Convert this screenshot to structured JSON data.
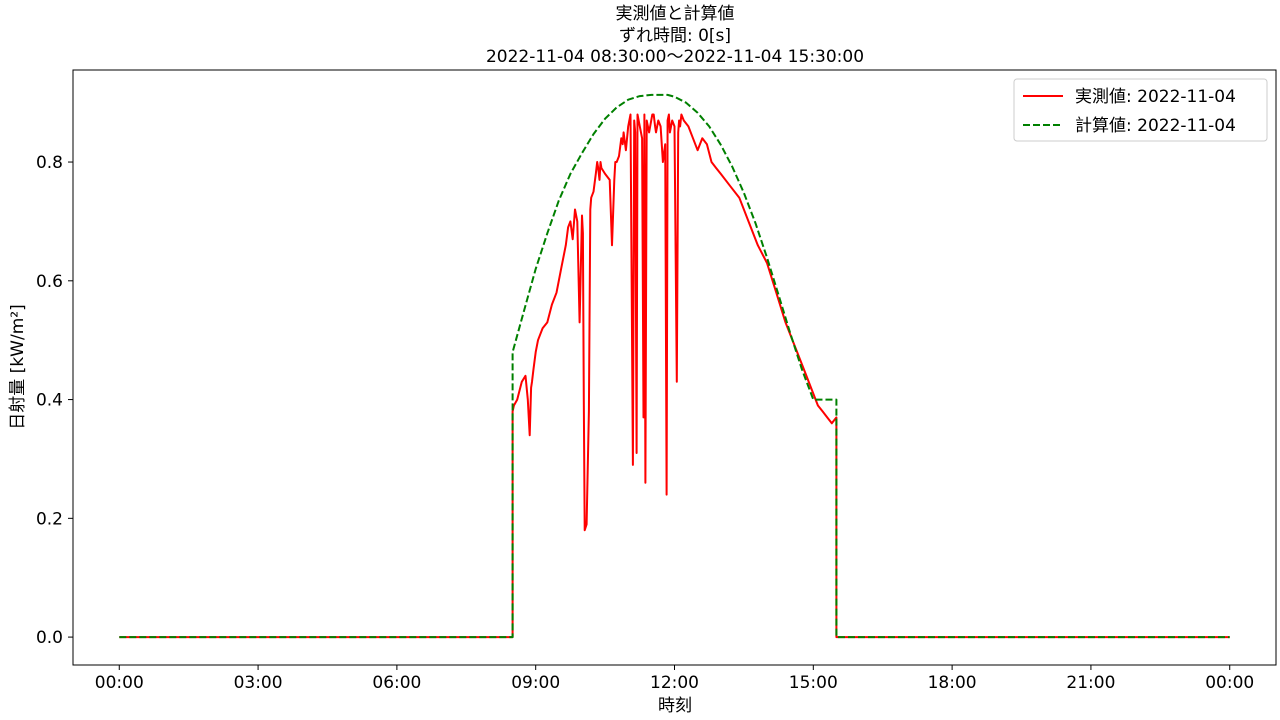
{
  "chart_data": {
    "type": "line",
    "title": [
      "実測値と計算値",
      "ずれ時間: 0[s]",
      "2022-11-04 08:30:00〜2022-11-04 15:30:00"
    ],
    "xlabel": "時刻",
    "ylabel": "日射量 [kW/m²]",
    "x_unit": "hour",
    "xlim": [
      -1,
      25
    ],
    "ylim": [
      -0.047,
      0.955
    ],
    "x_ticks": [
      {
        "value": 0,
        "label": "00:00"
      },
      {
        "value": 3,
        "label": "03:00"
      },
      {
        "value": 6,
        "label": "06:00"
      },
      {
        "value": 9,
        "label": "09:00"
      },
      {
        "value": 12,
        "label": "12:00"
      },
      {
        "value": 15,
        "label": "15:00"
      },
      {
        "value": 18,
        "label": "18:00"
      },
      {
        "value": 21,
        "label": "21:00"
      },
      {
        "value": 24,
        "label": "00:00"
      }
    ],
    "y_ticks": [
      {
        "value": 0.0,
        "label": "0.0"
      },
      {
        "value": 0.2,
        "label": "0.2"
      },
      {
        "value": 0.4,
        "label": "0.4"
      },
      {
        "value": 0.6,
        "label": "0.6"
      },
      {
        "value": 0.8,
        "label": "0.8"
      }
    ],
    "grid": false,
    "legend_position": "top-right",
    "series": [
      {
        "name": "実測値: 2022-11-04",
        "color": "#ff0000",
        "style": "solid",
        "x": [
          0,
          8.5,
          8.5,
          8.53,
          8.6,
          8.7,
          8.78,
          8.83,
          8.87,
          8.9,
          8.92,
          8.95,
          9.0,
          9.05,
          9.1,
          9.15,
          9.25,
          9.35,
          9.45,
          9.55,
          9.65,
          9.7,
          9.75,
          9.8,
          9.85,
          9.9,
          9.95,
          10.0,
          10.02,
          10.04,
          10.06,
          10.1,
          10.15,
          10.18,
          10.2,
          10.25,
          10.3,
          10.33,
          10.35,
          10.38,
          10.4,
          10.42,
          10.5,
          10.6,
          10.65,
          10.7,
          10.72,
          10.75,
          10.8,
          10.85,
          10.88,
          10.9,
          10.95,
          11.0,
          11.05,
          11.1,
          11.13,
          11.15,
          11.18,
          11.2,
          11.25,
          11.3,
          11.33,
          11.35,
          11.37,
          11.4,
          11.45,
          11.52,
          11.55,
          11.58,
          11.6,
          11.65,
          11.7,
          11.75,
          11.8,
          11.83,
          11.85,
          11.88,
          11.9,
          11.95,
          12.0,
          12.05,
          12.08,
          12.1,
          12.12,
          12.15,
          12.2,
          12.3,
          12.4,
          12.5,
          12.6,
          12.7,
          12.8,
          12.9,
          13.0,
          13.2,
          13.4,
          13.6,
          13.8,
          14.0,
          14.2,
          14.4,
          14.6,
          14.8,
          15.0,
          15.1,
          15.2,
          15.3,
          15.4,
          15.5,
          15.5,
          24
        ],
        "y": [
          0,
          0,
          0.38,
          0.39,
          0.4,
          0.43,
          0.44,
          0.4,
          0.34,
          0.42,
          0.43,
          0.45,
          0.48,
          0.5,
          0.51,
          0.52,
          0.53,
          0.56,
          0.58,
          0.62,
          0.66,
          0.69,
          0.7,
          0.67,
          0.72,
          0.7,
          0.53,
          0.71,
          0.68,
          0.4,
          0.18,
          0.19,
          0.38,
          0.72,
          0.74,
          0.75,
          0.78,
          0.8,
          0.79,
          0.77,
          0.8,
          0.79,
          0.78,
          0.77,
          0.66,
          0.77,
          0.8,
          0.8,
          0.81,
          0.84,
          0.83,
          0.85,
          0.82,
          0.86,
          0.88,
          0.29,
          0.87,
          0.85,
          0.31,
          0.88,
          0.86,
          0.84,
          0.37,
          0.88,
          0.26,
          0.87,
          0.85,
          0.88,
          0.88,
          0.86,
          0.85,
          0.87,
          0.86,
          0.8,
          0.83,
          0.24,
          0.87,
          0.88,
          0.85,
          0.87,
          0.86,
          0.43,
          0.85,
          0.87,
          0.86,
          0.88,
          0.87,
          0.86,
          0.84,
          0.82,
          0.84,
          0.83,
          0.8,
          0.79,
          0.78,
          0.76,
          0.74,
          0.7,
          0.66,
          0.63,
          0.58,
          0.53,
          0.49,
          0.45,
          0.41,
          0.39,
          0.38,
          0.37,
          0.36,
          0.37,
          0,
          0
        ]
      },
      {
        "name": "計算値: 2022-11-04",
        "color": "#008000",
        "style": "dashed",
        "x": [
          0,
          8.5,
          8.5,
          8.75,
          9.0,
          9.25,
          9.5,
          9.75,
          10.0,
          10.25,
          10.5,
          10.75,
          11.0,
          11.25,
          11.5,
          11.75,
          11.85,
          12.0,
          12.25,
          12.5,
          12.75,
          13.0,
          13.25,
          13.5,
          13.75,
          14.0,
          14.25,
          14.5,
          14.75,
          15.0,
          15.25,
          15.5,
          15.5,
          24
        ],
        "y": [
          0,
          0,
          0.48,
          0.55,
          0.62,
          0.68,
          0.735,
          0.78,
          0.815,
          0.847,
          0.873,
          0.892,
          0.905,
          0.911,
          0.913,
          0.913,
          0.913,
          0.91,
          0.9,
          0.883,
          0.86,
          0.829,
          0.792,
          0.748,
          0.697,
          0.639,
          0.576,
          0.512,
          0.452,
          0.4,
          0.4,
          0.4,
          0,
          0
        ]
      }
    ]
  }
}
